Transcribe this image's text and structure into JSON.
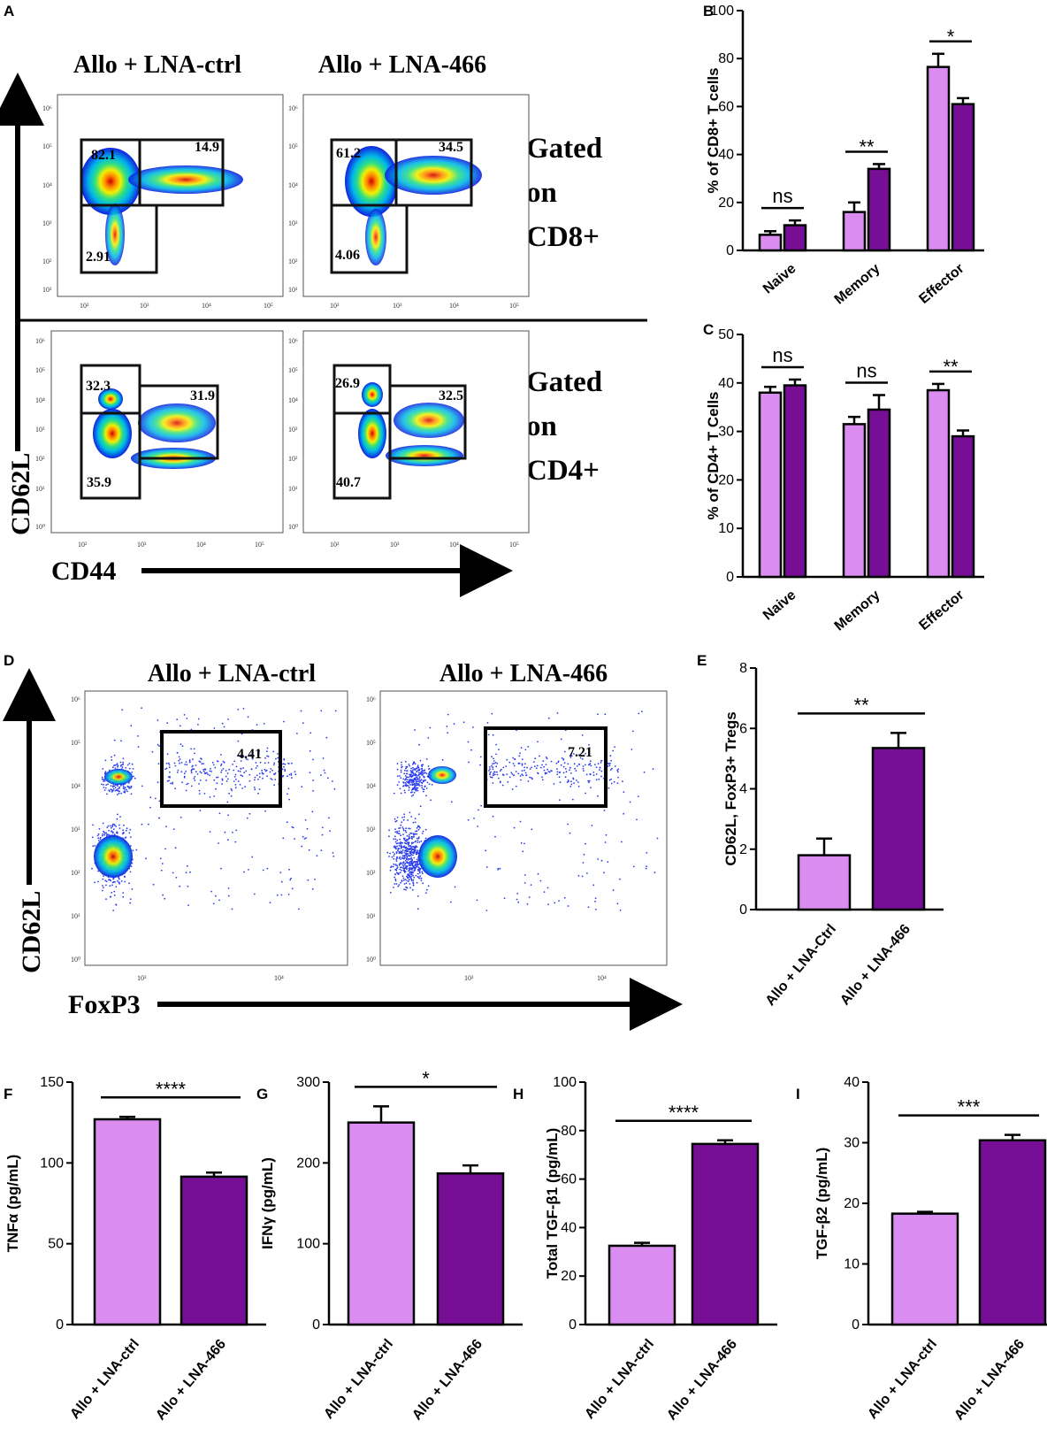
{
  "colors": {
    "light": "#DA8CF0",
    "dark": "#760F96",
    "axis": "#000000"
  },
  "panels": {
    "A": "A",
    "B": "B",
    "C": "C",
    "D": "D",
    "E": "E",
    "F": "F",
    "G": "G",
    "H": "H",
    "I": "I"
  },
  "flow_a": {
    "col1_title": "Allo + LNA-ctrl",
    "col2_title": "Allo + LNA-466",
    "y_axis_label": "CD62L",
    "x_axis_label": "CD44",
    "row1_gate_lines": [
      "Gated",
      "on",
      "CD8+"
    ],
    "row2_gate_lines": [
      "Gated",
      "on",
      "CD4+"
    ],
    "cd8_ctrl": [
      "82.1",
      "14.9",
      "2.91"
    ],
    "cd8_466": [
      "61.2",
      "34.5",
      "4.06"
    ],
    "cd4_ctrl": [
      "32.3",
      "31.9",
      "35.9"
    ],
    "cd4_466": [
      "26.9",
      "32.5",
      "40.7"
    ],
    "log_ticks": [
      "10¹",
      "10²",
      "10³",
      "10⁴",
      "10⁵",
      "10⁶"
    ],
    "log_ticks_x": [
      "10²",
      "10³",
      "10⁴",
      "10⁵"
    ],
    "log_ticks_y_cd4": [
      "10⁰",
      "10¹",
      "10²",
      "10³",
      "10⁴",
      "10⁵",
      "10⁶"
    ]
  },
  "flow_d": {
    "col1_title": "Allo + LNA-ctrl",
    "col2_title": "Allo + LNA-466",
    "y_axis_label": "CD62L",
    "x_axis_label": "FoxP3",
    "gate_ctrl": "4.41",
    "gate_466": "7.21",
    "y_ticks": [
      "10⁰",
      "10¹",
      "10²",
      "10³",
      "10⁴",
      "10⁵",
      "10⁶"
    ],
    "x_ticks": [
      "10³",
      "10⁴"
    ]
  },
  "chart_data": [
    {
      "panel": "B",
      "type": "bar",
      "categories": [
        "Naive",
        "Memory",
        "Effector"
      ],
      "series": [
        {
          "name": "Allo + LNA-ctrl",
          "values": [
            6.5,
            16,
            76.5
          ],
          "errors": [
            1.5,
            4,
            5.5
          ]
        },
        {
          "name": "Allo + LNA-466",
          "values": [
            10.5,
            34,
            61
          ],
          "errors": [
            2,
            2,
            2.5
          ]
        }
      ],
      "significance": [
        "ns",
        "**",
        "*"
      ],
      "ylabel": "% of CD8+ T cells",
      "ylim": [
        0,
        100
      ],
      "yticks": [
        "0",
        "20",
        "40",
        "60",
        "80",
        "100"
      ]
    },
    {
      "panel": "C",
      "type": "bar",
      "categories": [
        "Naive",
        "Memory",
        "Effector"
      ],
      "series": [
        {
          "name": "Allo + LNA-ctrl",
          "values": [
            38,
            31.5,
            38.5
          ],
          "errors": [
            1.2,
            1.5,
            1.3
          ]
        },
        {
          "name": "Allo + LNA-466",
          "values": [
            39.5,
            34.5,
            29
          ],
          "errors": [
            1.2,
            3,
            1.2
          ]
        }
      ],
      "significance": [
        "ns",
        "ns",
        "**"
      ],
      "ylabel": "% of CD4+ T Cells",
      "ylim": [
        0,
        50
      ],
      "yticks": [
        "0",
        "10",
        "20",
        "30",
        "40",
        "50"
      ]
    },
    {
      "panel": "E",
      "type": "bar",
      "categories": [
        "Allo + LNA-Ctrl",
        "Allo + LNA-466"
      ],
      "values": [
        1.8,
        5.35
      ],
      "errors": [
        0.55,
        0.5
      ],
      "significance": "**",
      "ylabel": "CD62L, FoxP3+ Tregs",
      "ylim": [
        0,
        8
      ],
      "yticks": [
        "0",
        "2",
        "4",
        "6",
        "8"
      ]
    },
    {
      "panel": "F",
      "type": "bar",
      "categories": [
        "Allo + LNA-ctrl",
        "Allo + LNA-466"
      ],
      "values": [
        127,
        91.5
      ],
      "errors": [
        1.5,
        2.5
      ],
      "significance": "****",
      "ylabel": "TNFα (pg/mL)",
      "ylim": [
        0,
        150
      ],
      "yticks": [
        "0",
        "50",
        "100",
        "150"
      ]
    },
    {
      "panel": "G",
      "type": "bar",
      "categories": [
        "Allo + LNA-ctrl",
        "Allo + LNA-466"
      ],
      "values": [
        250,
        187
      ],
      "errors": [
        20,
        10
      ],
      "significance": "*",
      "ylabel": "IFNγ (pg/mL)",
      "ylim": [
        0,
        300
      ],
      "yticks": [
        "0",
        "100",
        "200",
        "300"
      ]
    },
    {
      "panel": "H",
      "type": "bar",
      "categories": [
        "Allo + LNA-ctrl",
        "Allo + LNA-466"
      ],
      "values": [
        32.5,
        74.5
      ],
      "errors": [
        1.2,
        1.5
      ],
      "significance": "****",
      "ylabel": "Total TGF-β1 (pg/mL)",
      "ylim": [
        0,
        100
      ],
      "yticks": [
        "0",
        "20",
        "40",
        "60",
        "80",
        "100"
      ]
    },
    {
      "panel": "I",
      "type": "bar",
      "categories": [
        "Allo + LNA-ctrl",
        "Allo + LNA-466"
      ],
      "values": [
        18.3,
        30.4
      ],
      "errors": [
        0.3,
        0.9
      ],
      "significance": "***",
      "ylabel": "TGF-β2 (pg/mL)",
      "ylim": [
        0,
        40
      ],
      "yticks": [
        "0",
        "10",
        "20",
        "30",
        "40"
      ]
    }
  ]
}
